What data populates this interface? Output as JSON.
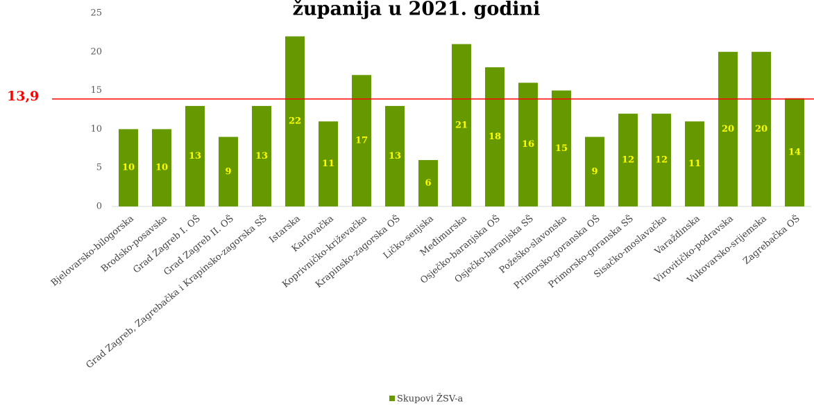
{
  "chart_data": {
    "type": "bar",
    "title": "županija u 2021. godini",
    "categories": [
      "Bjelovarsko-bilogorska",
      "Brodsko-posavska",
      "Grad Zagreb I. OŠ",
      "Grad Zagreb II. OŠ",
      "Grad Zagreb, Zagrebačka i Krapinsko-zagorska SŠ",
      "Istarska",
      "Karlovačka",
      "Koprivničko-križevačka",
      "Krapinsko-zagorska OŠ",
      "Ličko-senjska",
      "Međimurska",
      "Osječko-baranjska OŠ",
      "Osječko-baranjska SŠ",
      "Požeško-slavonska",
      "Primorsko-goranska OŠ",
      "Primorsko-goranska SŠ",
      "Sisačko-moslavačka",
      "Varaždinska",
      "Virovitičko-podravska",
      "Vukovarsko-srijemska",
      "Zagrebačka OŠ"
    ],
    "series": [
      {
        "name": "Skupovi ŽSV-a",
        "color": "#669900",
        "values": [
          10,
          10,
          13,
          9,
          13,
          22,
          11,
          17,
          13,
          6,
          21,
          18,
          16,
          15,
          9,
          12,
          12,
          11,
          20,
          20,
          14
        ]
      }
    ],
    "ylim": [
      0,
      25
    ],
    "yticks": [
      0,
      5,
      10,
      15,
      20,
      25
    ],
    "reference_line": {
      "value": 13.9,
      "label": "13,9",
      "color": "#ff0000"
    },
    "legend": "bottom"
  }
}
